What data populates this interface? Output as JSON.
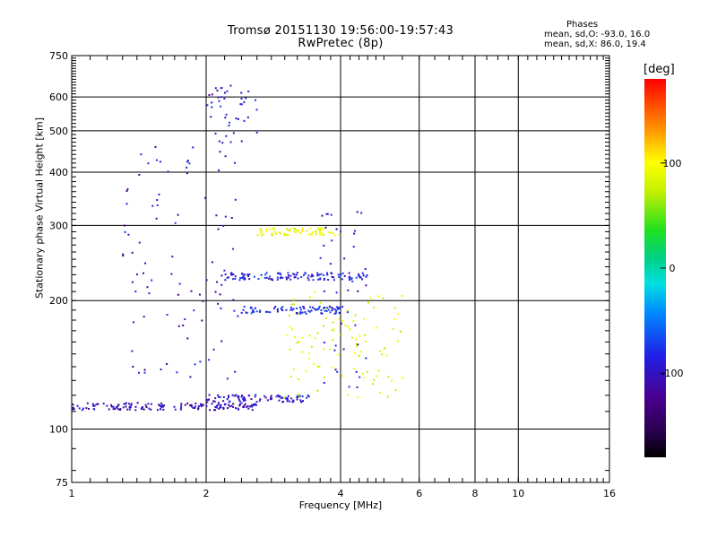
{
  "chart_data": {
    "type": "scatter",
    "title": "Tromsø 20151130 19:56:00-19:57:43",
    "subtitle": "RwPretec (8p)",
    "xlabel": "Frequency [MHz]",
    "ylabel": "Stationary phase Virtual Height [km]",
    "x_scale": "log",
    "y_scale": "log",
    "xlim": [
      1,
      16
    ],
    "ylim": [
      75,
      750
    ],
    "x_ticks": [
      "1",
      "2",
      "4",
      "6",
      "8",
      "10",
      "16"
    ],
    "y_ticks": [
      "750",
      "600",
      "500",
      "400",
      "300",
      "200",
      "100",
      "75"
    ],
    "grid": true,
    "colorbar": {
      "unit": "[deg]",
      "ticks": [
        "100",
        "0",
        "-100"
      ],
      "range": [
        -180,
        180
      ],
      "colormap": "rainbow: black → purple → blue → cyan → green → yellow → orange → red"
    },
    "phase_stats": {
      "heading": "Phases",
      "line_o": "mean, sd,O: -93.0, 16.0",
      "line_x": "mean, sd,X: 86.0, 19.4"
    },
    "traces": [
      {
        "x_range": [
          1.0,
          2.6
        ],
        "height_km": 113,
        "phase_deg": -115,
        "note": "lower E/Es echo, blue"
      },
      {
        "x_range": [
          2.0,
          3.4
        ],
        "height_km": 118,
        "phase_deg": -110,
        "note": "lower echo continuation"
      },
      {
        "x_range": [
          3.0,
          5.6
        ],
        "height_km_range": [
          118,
          210
        ],
        "phase_deg": 85,
        "note": "X-mode trace, yellow"
      },
      {
        "x_range": [
          1.3,
          2.4
        ],
        "height_km_range": [
          130,
          480
        ],
        "phase_deg": -110,
        "note": "F-region diffuse echoes"
      },
      {
        "x_range": [
          2.0,
          2.6
        ],
        "height_km_range": [
          470,
          640
        ],
        "phase_deg": -105,
        "note": "high-altitude multiple echoes"
      },
      {
        "x_range": [
          2.2,
          4.6
        ],
        "height_km": 228,
        "phase_deg": -100,
        "note": "O-mode trace ~228 km"
      },
      {
        "x_range": [
          2.4,
          4.2
        ],
        "height_km": 190,
        "phase_deg": -95,
        "note": "O-mode trace ~190 km"
      },
      {
        "x_range": [
          2.6,
          4.0
        ],
        "height_km": 290,
        "phase_deg": 90,
        "note": "X-mode trace ~290 km"
      },
      {
        "x_range": [
          3.6,
          4.6
        ],
        "height_km_range": [
          120,
          330
        ],
        "phase_deg": -110,
        "note": "O-mode critical spread"
      }
    ],
    "colors": {
      "grid": "#000000",
      "background": "#ffffff"
    }
  }
}
